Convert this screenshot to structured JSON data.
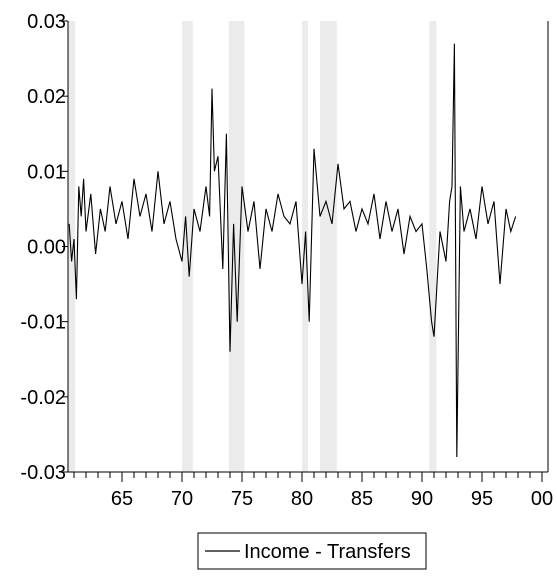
{
  "chart_data": {
    "type": "line",
    "title": "",
    "xlabel": "",
    "ylabel": "",
    "xlim": [
      1960.5,
      2000.5
    ],
    "ylim": [
      -0.03,
      0.03
    ],
    "x_ticks": [
      {
        "value": 1965,
        "label": "65"
      },
      {
        "value": 1970,
        "label": "70"
      },
      {
        "value": 1975,
        "label": "75"
      },
      {
        "value": 1980,
        "label": "80"
      },
      {
        "value": 1985,
        "label": "85"
      },
      {
        "value": 1990,
        "label": "90"
      },
      {
        "value": 1995,
        "label": "95"
      },
      {
        "value": 2000,
        "label": "00"
      }
    ],
    "y_ticks": [
      {
        "value": 0.03,
        "label": "0.03"
      },
      {
        "value": 0.02,
        "label": "0.02"
      },
      {
        "value": 0.01,
        "label": "0.01"
      },
      {
        "value": 0.0,
        "label": "0.00"
      },
      {
        "value": -0.01,
        "label": "-0.01"
      },
      {
        "value": -0.02,
        "label": "-0.02"
      },
      {
        "value": -0.03,
        "label": "-0.03"
      }
    ],
    "grid": false,
    "legend_position": "bottom-center",
    "colors": {
      "line": "#000000",
      "recession": "#ebebeb",
      "axis": "#000000"
    },
    "recessions": [
      {
        "start": 1960.5,
        "end": 1961.1
      },
      {
        "start": 1970.0,
        "end": 1970.9
      },
      {
        "start": 1973.9,
        "end": 1975.2
      },
      {
        "start": 1980.0,
        "end": 1980.5
      },
      {
        "start": 1981.5,
        "end": 1982.9
      },
      {
        "start": 1990.6,
        "end": 1991.2
      }
    ],
    "series": [
      {
        "name": "Income - Transfers",
        "x": [
          1960.6,
          1960.8,
          1961.0,
          1961.2,
          1961.4,
          1961.6,
          1961.8,
          1962.0,
          1962.4,
          1962.8,
          1963.2,
          1963.6,
          1964.0,
          1964.5,
          1965.0,
          1965.5,
          1966.0,
          1966.5,
          1967.0,
          1967.5,
          1968.0,
          1968.5,
          1969.0,
          1969.5,
          1970.0,
          1970.3,
          1970.6,
          1971.0,
          1971.5,
          1972.0,
          1972.3,
          1972.5,
          1972.7,
          1973.0,
          1973.4,
          1973.7,
          1974.0,
          1974.3,
          1974.6,
          1975.0,
          1975.5,
          1976.0,
          1976.5,
          1977.0,
          1977.5,
          1978.0,
          1978.5,
          1979.0,
          1979.5,
          1980.0,
          1980.3,
          1980.6,
          1981.0,
          1981.5,
          1982.0,
          1982.5,
          1983.0,
          1983.5,
          1984.0,
          1984.5,
          1985.0,
          1985.5,
          1986.0,
          1986.5,
          1987.0,
          1987.5,
          1988.0,
          1988.5,
          1989.0,
          1989.5,
          1990.0,
          1990.4,
          1990.8,
          1991.0,
          1991.5,
          1992.0,
          1992.3,
          1992.5,
          1992.7,
          1992.9,
          1993.2,
          1993.5,
          1994.0,
          1994.5,
          1995.0,
          1995.5,
          1996.0,
          1996.5,
          1997.0,
          1997.4,
          1997.8
        ],
        "values": [
          0.003,
          -0.002,
          0.001,
          -0.007,
          0.008,
          0.004,
          0.009,
          0.002,
          0.007,
          -0.001,
          0.005,
          0.002,
          0.008,
          0.003,
          0.006,
          0.001,
          0.009,
          0.004,
          0.007,
          0.002,
          0.01,
          0.003,
          0.006,
          0.001,
          -0.002,
          0.004,
          -0.004,
          0.005,
          0.002,
          0.008,
          0.004,
          0.021,
          0.01,
          0.012,
          -0.003,
          0.015,
          -0.014,
          0.003,
          -0.01,
          0.008,
          0.002,
          0.006,
          -0.003,
          0.005,
          0.002,
          0.007,
          0.004,
          0.003,
          0.006,
          -0.005,
          0.002,
          -0.01,
          0.013,
          0.004,
          0.006,
          0.003,
          0.011,
          0.005,
          0.006,
          0.002,
          0.005,
          0.003,
          0.007,
          0.001,
          0.006,
          0.002,
          0.005,
          -0.001,
          0.004,
          0.002,
          0.003,
          -0.003,
          -0.01,
          -0.012,
          0.002,
          -0.002,
          0.006,
          0.008,
          0.027,
          -0.028,
          0.008,
          0.002,
          0.005,
          0.001,
          0.008,
          0.003,
          0.006,
          -0.005,
          0.005,
          0.002,
          0.004
        ]
      }
    ]
  }
}
